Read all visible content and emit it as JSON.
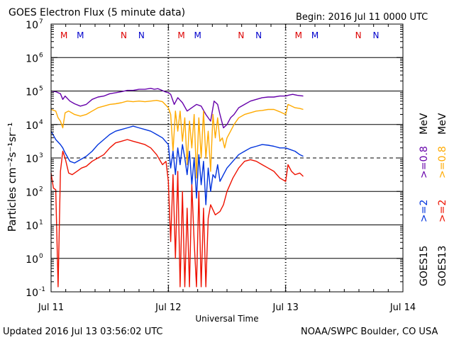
{
  "header": {
    "title": "GOES Electron Flux (5 minute data)",
    "begin": "Begin: 2016 Jul 11 0000 UTC"
  },
  "footer": {
    "updated": "Updated 2016 Jul 13 03:56:02 UTC",
    "source": "NOAA/SWPC Boulder, CO USA"
  },
  "axes": {
    "xlabel": "Universal Time",
    "ylabel_text": "Particles cm⁻²s⁻¹sr⁻¹",
    "xticks": [
      "Jul 11",
      "Jul 12",
      "Jul 13",
      "Jul 14"
    ],
    "yticks": [
      {
        "base": "10",
        "exp": "7"
      },
      {
        "base": "10",
        "exp": "6"
      },
      {
        "base": "10",
        "exp": "5"
      },
      {
        "base": "10",
        "exp": "4"
      },
      {
        "base": "10",
        "exp": "3"
      },
      {
        "base": "10",
        "exp": "2"
      },
      {
        "base": "10",
        "exp": "1"
      },
      {
        "base": "10",
        "exp": "0"
      },
      {
        "base": "10",
        "exp": "-1"
      }
    ]
  },
  "legend": {
    "goes15": "GOES15",
    "goes13": "GOES13",
    "ge2_goes15": ">=2",
    "ge08_goes15": ">=0.8",
    "ge2_goes13": ">=2",
    "ge08_goes13": ">=0.8",
    "mev": "MeV"
  },
  "colors": {
    "goes15_ge08": "#6600aa",
    "goes13_ge08": "#ffaa00",
    "goes15_ge2": "#0033dd",
    "goes13_ge2": "#ee1100",
    "marker_m": "#dd0000",
    "marker_n_red": "#dd0000",
    "marker_n_blue": "#0000cc",
    "marker_m_blue": "#0000cc"
  },
  "markers": [
    {
      "day": 0.11,
      "label": "M",
      "color": "#dd0000"
    },
    {
      "day": 0.25,
      "label": "M",
      "color": "#0000cc"
    },
    {
      "day": 0.62,
      "label": "N",
      "color": "#dd0000"
    },
    {
      "day": 0.77,
      "label": "N",
      "color": "#0000cc"
    },
    {
      "day": 1.11,
      "label": "M",
      "color": "#dd0000"
    },
    {
      "day": 1.25,
      "label": "M",
      "color": "#0000cc"
    },
    {
      "day": 1.62,
      "label": "N",
      "color": "#dd0000"
    },
    {
      "day": 1.77,
      "label": "N",
      "color": "#0000cc"
    },
    {
      "day": 2.11,
      "label": "M",
      "color": "#dd0000"
    },
    {
      "day": 2.25,
      "label": "M",
      "color": "#0000cc"
    },
    {
      "day": 2.62,
      "label": "N",
      "color": "#dd0000"
    },
    {
      "day": 2.77,
      "label": "N",
      "color": "#0000cc"
    }
  ],
  "chart_data": {
    "type": "line",
    "title": "GOES Electron Flux (5 minute data)",
    "xlabel": "Universal Time",
    "ylabel": "Particles cm-2 s-1 sr-1",
    "x_unit": "days since 2016 Jul 11 0000 UTC",
    "xlim": [
      0,
      3
    ],
    "ylim_log10": [
      -1,
      7
    ],
    "yscale": "log",
    "threshold_log10": 3,
    "day_boundaries": [
      1,
      2
    ],
    "series": [
      {
        "name": "GOES15 >=0.8 MeV",
        "color": "#6600aa",
        "points": [
          [
            0.0,
            5.0
          ],
          [
            0.04,
            4.98
          ],
          [
            0.08,
            4.92
          ],
          [
            0.1,
            4.75
          ],
          [
            0.12,
            4.85
          ],
          [
            0.16,
            4.7
          ],
          [
            0.2,
            4.62
          ],
          [
            0.25,
            4.55
          ],
          [
            0.3,
            4.6
          ],
          [
            0.35,
            4.75
          ],
          [
            0.4,
            4.82
          ],
          [
            0.45,
            4.85
          ],
          [
            0.5,
            4.92
          ],
          [
            0.55,
            4.95
          ],
          [
            0.6,
            4.98
          ],
          [
            0.65,
            5.02
          ],
          [
            0.7,
            5.02
          ],
          [
            0.75,
            5.05
          ],
          [
            0.8,
            5.05
          ],
          [
            0.85,
            5.08
          ],
          [
            0.88,
            5.05
          ],
          [
            0.91,
            5.07
          ],
          [
            0.94,
            5.03
          ],
          [
            0.97,
            4.98
          ],
          [
            1.0,
            4.95
          ],
          [
            1.02,
            4.9
          ],
          [
            1.05,
            4.6
          ],
          [
            1.08,
            4.8
          ],
          [
            1.12,
            4.65
          ],
          [
            1.16,
            4.4
          ],
          [
            1.2,
            4.5
          ],
          [
            1.24,
            4.6
          ],
          [
            1.28,
            4.55
          ],
          [
            1.32,
            4.3
          ],
          [
            1.36,
            4.1
          ],
          [
            1.39,
            4.7
          ],
          [
            1.42,
            4.6
          ],
          [
            1.44,
            4.3
          ],
          [
            1.47,
            3.9
          ],
          [
            1.5,
            4.0
          ],
          [
            1.53,
            4.2
          ],
          [
            1.56,
            4.3
          ],
          [
            1.6,
            4.5
          ],
          [
            1.65,
            4.6
          ],
          [
            1.7,
            4.7
          ],
          [
            1.75,
            4.75
          ],
          [
            1.8,
            4.8
          ],
          [
            1.85,
            4.82
          ],
          [
            1.9,
            4.82
          ],
          [
            1.95,
            4.85
          ],
          [
            2.0,
            4.85
          ],
          [
            2.03,
            4.88
          ],
          [
            2.06,
            4.9
          ],
          [
            2.1,
            4.87
          ],
          [
            2.15,
            4.85
          ]
        ]
      },
      {
        "name": "GOES13 >=0.8 MeV",
        "color": "#ffaa00",
        "points": [
          [
            0.0,
            4.45
          ],
          [
            0.04,
            4.4
          ],
          [
            0.06,
            4.2
          ],
          [
            0.08,
            4.1
          ],
          [
            0.1,
            3.9
          ],
          [
            0.12,
            4.35
          ],
          [
            0.15,
            4.4
          ],
          [
            0.2,
            4.3
          ],
          [
            0.25,
            4.25
          ],
          [
            0.3,
            4.3
          ],
          [
            0.35,
            4.4
          ],
          [
            0.4,
            4.5
          ],
          [
            0.45,
            4.55
          ],
          [
            0.5,
            4.6
          ],
          [
            0.55,
            4.62
          ],
          [
            0.6,
            4.65
          ],
          [
            0.65,
            4.7
          ],
          [
            0.7,
            4.68
          ],
          [
            0.75,
            4.7
          ],
          [
            0.8,
            4.68
          ],
          [
            0.85,
            4.7
          ],
          [
            0.9,
            4.72
          ],
          [
            0.95,
            4.68
          ],
          [
            1.0,
            4.5
          ],
          [
            1.02,
            4.3
          ],
          [
            1.04,
            3.2
          ],
          [
            1.06,
            4.4
          ],
          [
            1.08,
            3.8
          ],
          [
            1.1,
            4.4
          ],
          [
            1.12,
            3.5
          ],
          [
            1.14,
            4.2
          ],
          [
            1.16,
            2.8
          ],
          [
            1.18,
            4.1
          ],
          [
            1.2,
            3.3
          ],
          [
            1.22,
            4.3
          ],
          [
            1.24,
            2.4
          ],
          [
            1.26,
            4.2
          ],
          [
            1.28,
            3.0
          ],
          [
            1.3,
            4.4
          ],
          [
            1.32,
            3.0
          ],
          [
            1.34,
            3.8
          ],
          [
            1.36,
            2.6
          ],
          [
            1.38,
            4.3
          ],
          [
            1.4,
            3.6
          ],
          [
            1.42,
            4.2
          ],
          [
            1.44,
            3.5
          ],
          [
            1.46,
            3.6
          ],
          [
            1.48,
            3.3
          ],
          [
            1.5,
            3.6
          ],
          [
            1.53,
            3.8
          ],
          [
            1.56,
            4.0
          ],
          [
            1.6,
            4.2
          ],
          [
            1.65,
            4.3
          ],
          [
            1.7,
            4.35
          ],
          [
            1.75,
            4.4
          ],
          [
            1.8,
            4.42
          ],
          [
            1.85,
            4.45
          ],
          [
            1.9,
            4.45
          ],
          [
            1.95,
            4.38
          ],
          [
            2.0,
            4.3
          ],
          [
            2.02,
            4.6
          ],
          [
            2.05,
            4.55
          ],
          [
            2.08,
            4.5
          ],
          [
            2.12,
            4.48
          ],
          [
            2.15,
            4.45
          ]
        ]
      },
      {
        "name": "GOES15 >=2 MeV",
        "color": "#0033dd",
        "points": [
          [
            0.0,
            3.8
          ],
          [
            0.04,
            3.55
          ],
          [
            0.08,
            3.4
          ],
          [
            0.1,
            3.3
          ],
          [
            0.12,
            3.15
          ],
          [
            0.16,
            2.9
          ],
          [
            0.2,
            2.85
          ],
          [
            0.25,
            2.95
          ],
          [
            0.3,
            3.05
          ],
          [
            0.35,
            3.2
          ],
          [
            0.4,
            3.4
          ],
          [
            0.45,
            3.55
          ],
          [
            0.5,
            3.7
          ],
          [
            0.55,
            3.8
          ],
          [
            0.6,
            3.85
          ],
          [
            0.65,
            3.9
          ],
          [
            0.7,
            3.95
          ],
          [
            0.75,
            3.9
          ],
          [
            0.8,
            3.85
          ],
          [
            0.85,
            3.8
          ],
          [
            0.9,
            3.7
          ],
          [
            0.95,
            3.6
          ],
          [
            1.0,
            3.4
          ],
          [
            1.02,
            2.7
          ],
          [
            1.04,
            3.2
          ],
          [
            1.06,
            2.5
          ],
          [
            1.08,
            3.3
          ],
          [
            1.1,
            2.8
          ],
          [
            1.12,
            3.4
          ],
          [
            1.14,
            3.0
          ],
          [
            1.16,
            2.5
          ],
          [
            1.18,
            3.2
          ],
          [
            1.2,
            2.2
          ],
          [
            1.22,
            3.0
          ],
          [
            1.24,
            1.8
          ],
          [
            1.26,
            3.1
          ],
          [
            1.28,
            2.2
          ],
          [
            1.3,
            2.9
          ],
          [
            1.32,
            1.6
          ],
          [
            1.34,
            2.7
          ],
          [
            1.36,
            2.0
          ],
          [
            1.38,
            2.5
          ],
          [
            1.4,
            2.4
          ],
          [
            1.42,
            2.8
          ],
          [
            1.44,
            2.3
          ],
          [
            1.47,
            2.5
          ],
          [
            1.5,
            2.7
          ],
          [
            1.55,
            2.9
          ],
          [
            1.6,
            3.1
          ],
          [
            1.65,
            3.2
          ],
          [
            1.7,
            3.3
          ],
          [
            1.75,
            3.35
          ],
          [
            1.8,
            3.4
          ],
          [
            1.85,
            3.38
          ],
          [
            1.9,
            3.35
          ],
          [
            1.95,
            3.3
          ],
          [
            2.0,
            3.3
          ],
          [
            2.04,
            3.25
          ],
          [
            2.08,
            3.2
          ],
          [
            2.12,
            3.1
          ],
          [
            2.15,
            3.05
          ]
        ]
      },
      {
        "name": "GOES13 >=2 MeV",
        "color": "#ee1100",
        "points": [
          [
            0.0,
            2.55
          ],
          [
            0.02,
            2.1
          ],
          [
            0.04,
            2.05
          ],
          [
            0.06,
            -0.85
          ],
          [
            0.08,
            2.6
          ],
          [
            0.1,
            3.2
          ],
          [
            0.12,
            3.0
          ],
          [
            0.15,
            2.55
          ],
          [
            0.18,
            2.5
          ],
          [
            0.22,
            2.6
          ],
          [
            0.26,
            2.7
          ],
          [
            0.3,
            2.75
          ],
          [
            0.35,
            2.9
          ],
          [
            0.4,
            3.0
          ],
          [
            0.45,
            3.1
          ],
          [
            0.5,
            3.3
          ],
          [
            0.55,
            3.45
          ],
          [
            0.6,
            3.5
          ],
          [
            0.65,
            3.55
          ],
          [
            0.7,
            3.5
          ],
          [
            0.75,
            3.45
          ],
          [
            0.8,
            3.4
          ],
          [
            0.85,
            3.3
          ],
          [
            0.9,
            3.1
          ],
          [
            0.95,
            2.8
          ],
          [
            0.98,
            2.9
          ],
          [
            1.0,
            2.3
          ],
          [
            1.02,
            0.5
          ],
          [
            1.04,
            2.5
          ],
          [
            1.06,
            0.0
          ],
          [
            1.08,
            2.6
          ],
          [
            1.1,
            -0.85
          ],
          [
            1.12,
            2.0
          ],
          [
            1.14,
            -0.85
          ],
          [
            1.16,
            1.5
          ],
          [
            1.18,
            -0.85
          ],
          [
            1.2,
            2.2
          ],
          [
            1.22,
            0.5
          ],
          [
            1.24,
            -0.85
          ],
          [
            1.26,
            2.0
          ],
          [
            1.28,
            -0.85
          ],
          [
            1.3,
            1.5
          ],
          [
            1.32,
            -0.85
          ],
          [
            1.34,
            1.2
          ],
          [
            1.36,
            1.6
          ],
          [
            1.4,
            1.3
          ],
          [
            1.44,
            1.4
          ],
          [
            1.47,
            1.6
          ],
          [
            1.5,
            2.0
          ],
          [
            1.55,
            2.4
          ],
          [
            1.6,
            2.7
          ],
          [
            1.65,
            2.9
          ],
          [
            1.7,
            2.95
          ],
          [
            1.75,
            2.9
          ],
          [
            1.8,
            2.8
          ],
          [
            1.85,
            2.7
          ],
          [
            1.9,
            2.6
          ],
          [
            1.95,
            2.4
          ],
          [
            2.0,
            2.3
          ],
          [
            2.02,
            2.8
          ],
          [
            2.05,
            2.6
          ],
          [
            2.08,
            2.5
          ],
          [
            2.12,
            2.55
          ],
          [
            2.15,
            2.45
          ]
        ]
      }
    ]
  }
}
